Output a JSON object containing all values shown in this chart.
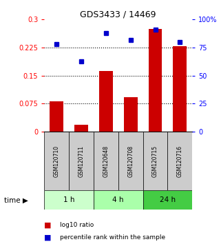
{
  "title": "GDS3433 / 14469",
  "samples": [
    "GSM120710",
    "GSM120711",
    "GSM120648",
    "GSM120708",
    "GSM120715",
    "GSM120716"
  ],
  "log10_ratio": [
    0.082,
    0.018,
    0.163,
    0.093,
    0.275,
    0.228
  ],
  "percentile_rank": [
    78,
    63,
    88,
    82,
    91,
    80
  ],
  "bar_color": "#cc0000",
  "dot_color": "#0000cc",
  "ylim_left": [
    0,
    0.3
  ],
  "ylim_right": [
    0,
    100
  ],
  "yticks_left": [
    0,
    0.075,
    0.15,
    0.225,
    0.3
  ],
  "ytick_labels_left": [
    "0",
    "0.075",
    "0.15",
    "0.225",
    "0.3"
  ],
  "yticks_right": [
    0,
    25,
    50,
    75,
    100
  ],
  "ytick_labels_right": [
    "0",
    "25",
    "50",
    "75",
    "100%"
  ],
  "hlines": [
    0.075,
    0.15,
    0.225
  ],
  "group_info": [
    {
      "start": 0,
      "end": 2,
      "label": "1 h",
      "color": "#ccffcc"
    },
    {
      "start": 2,
      "end": 4,
      "label": "4 h",
      "color": "#aaffaa"
    },
    {
      "start": 4,
      "end": 6,
      "label": "24 h",
      "color": "#44cc44"
    }
  ],
  "sample_box_color": "#cccccc",
  "legend_labels": [
    "log10 ratio",
    "percentile rank within the sample"
  ],
  "time_label": "time"
}
